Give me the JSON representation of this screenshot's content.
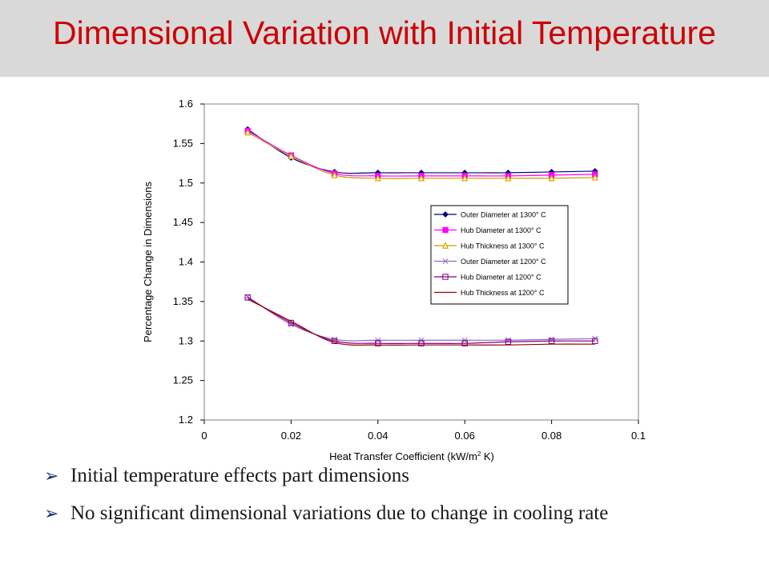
{
  "slide": {
    "title": "Dimensional Variation with Initial Temperature",
    "title_color": "#cc0000",
    "bullets": [
      "Initial temperature effects part dimensions",
      "No significant dimensional variations due to change in cooling rate"
    ],
    "bullet_icon": "right-arrow-bullet-icon"
  },
  "chart_data": {
    "type": "line",
    "title": "",
    "xlabel_main": "Heat Transfer Coefficient (kW/m",
    "xlabel_sup": "2",
    "xlabel_tail": " K)",
    "ylabel": "Percentage Change in Dimensions",
    "xlim": [
      0,
      0.1
    ],
    "ylim": [
      1.2,
      1.6
    ],
    "xticks": [
      "0",
      "0.02",
      "0.04",
      "0.06",
      "0.08",
      "0.1"
    ],
    "yticks": [
      "1.2",
      "1.25",
      "1.3",
      "1.35",
      "1.4",
      "1.45",
      "1.5",
      "1.55",
      "1.6"
    ],
    "grid": false,
    "legend_position": "center-right",
    "x": [
      0.01,
      0.02,
      0.03,
      0.04,
      0.05,
      0.06,
      0.07,
      0.08,
      0.09
    ],
    "series": [
      {
        "name": "Outer Diameter at 1300° C",
        "color": "#000080",
        "marker": "diamond",
        "values": [
          1.568,
          1.532,
          1.514,
          1.513,
          1.513,
          1.513,
          1.513,
          1.514,
          1.515
        ]
      },
      {
        "name": "Hub Diameter at 1300° C",
        "color": "#ff00ff",
        "marker": "square",
        "values": [
          1.566,
          1.535,
          1.512,
          1.509,
          1.509,
          1.509,
          1.509,
          1.51,
          1.511
        ]
      },
      {
        "name": "Hub Thickness at 1300° C",
        "color": "#cc9900",
        "marker": "triangle",
        "values": [
          1.564,
          1.534,
          1.51,
          1.506,
          1.506,
          1.506,
          1.506,
          1.506,
          1.507
        ]
      },
      {
        "name": "Outer Diameter at 1200° C",
        "color": "#9966cc",
        "marker": "x",
        "values": [
          1.356,
          1.321,
          1.302,
          1.301,
          1.301,
          1.301,
          1.301,
          1.302,
          1.303
        ]
      },
      {
        "name": "Hub Diameter at 1200° C",
        "color": "#800080",
        "marker": "open-square",
        "values": [
          1.355,
          1.323,
          1.3,
          1.297,
          1.297,
          1.297,
          1.299,
          1.3,
          1.3
        ]
      },
      {
        "name": "Hub Thickness at 1200° C",
        "color": "#990000",
        "marker": "none",
        "values": [
          1.353,
          1.325,
          1.298,
          1.295,
          1.295,
          1.295,
          1.295,
          1.296,
          1.296
        ]
      }
    ]
  }
}
